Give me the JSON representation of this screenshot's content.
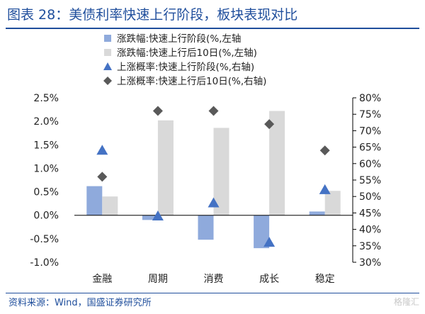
{
  "figure": {
    "title": "图表 28：美债利率快速上行阶段，板块表现对比",
    "source": "资料来源：Wind，国盛证券研究所",
    "watermark": "格隆汇"
  },
  "colors": {
    "title_blue": "#1f4e9c",
    "bar_fast": "#8faadc",
    "bar_after": "#d9d9d9",
    "marker_fast": "#4472c4",
    "marker_after": "#595959",
    "axis": "#000000"
  },
  "chart_data": {
    "type": "bar",
    "categories": [
      "金融",
      "周期",
      "消费",
      "成长",
      "稳定"
    ],
    "series": [
      {
        "name": "涨跌幅:快速上行阶段(%,左轴",
        "kind": "bar",
        "axis": "left",
        "marker": "square",
        "values": [
          0.62,
          -0.1,
          -0.52,
          -0.7,
          0.08
        ]
      },
      {
        "name": "涨跌幅:快速上行后10日(%,左轴)",
        "kind": "bar",
        "axis": "left",
        "marker": "square",
        "values": [
          0.4,
          2.02,
          1.86,
          2.22,
          0.52
        ]
      },
      {
        "name": "上涨概率:快速上行阶段(%,右轴)",
        "kind": "point",
        "axis": "right",
        "marker": "triangle",
        "values": [
          64,
          44,
          48,
          36,
          52
        ]
      },
      {
        "name": "上涨概率:快速上行后10日(%,右轴)",
        "kind": "point",
        "axis": "right",
        "marker": "diamond",
        "values": [
          56,
          76,
          76,
          72,
          64
        ]
      }
    ],
    "y_left": {
      "range": [
        -1.0,
        2.5
      ],
      "ticks": [
        "-1.0%",
        "-0.5%",
        "0.0%",
        "0.5%",
        "1.0%",
        "1.5%",
        "2.0%",
        "2.5%"
      ]
    },
    "y_right": {
      "range": [
        30,
        80
      ],
      "ticks": [
        "30%",
        "35%",
        "40%",
        "45%",
        "50%",
        "55%",
        "60%",
        "65%",
        "70%",
        "75%",
        "80%"
      ]
    },
    "grid": false,
    "legend_position": "top"
  }
}
